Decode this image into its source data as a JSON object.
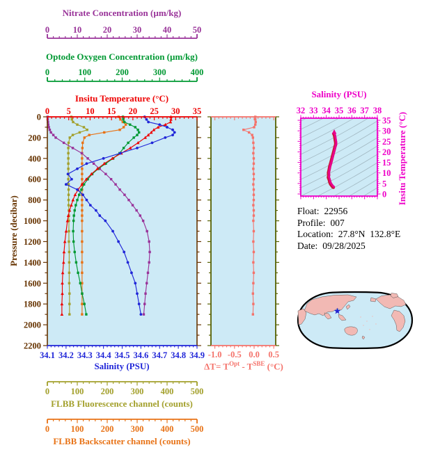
{
  "figure": {
    "background": "#ffffff",
    "plot_background": "#cdeaf6"
  },
  "info": {
    "lines": [
      {
        "label": "Float:",
        "value": "22956"
      },
      {
        "label": "Profile:",
        "value": "007"
      },
      {
        "label": "Location:",
        "value": "27.8°N  132.8°E"
      },
      {
        "label": "Date:",
        "value": "09/28/2025"
      }
    ]
  },
  "map": {
    "ocean_color": "#cdeaf6",
    "land_color": "#f2b9b4",
    "outline_color": "#000000",
    "marker": {
      "type": "star",
      "color": "#2020d0"
    }
  },
  "chart_data": [
    {
      "type": "line",
      "name": "profile-panel",
      "layout": {
        "orientation": "vertical-profile",
        "grid": false,
        "legend": "none"
      },
      "pressure_levels": [
        0,
        25,
        50,
        75,
        100,
        125,
        150,
        175,
        200,
        250,
        300,
        350,
        400,
        450,
        500,
        550,
        600,
        650,
        700,
        750,
        800,
        850,
        900,
        950,
        1000,
        1100,
        1200,
        1300,
        1400,
        1500,
        1600,
        1700,
        1800,
        1900
      ],
      "y_axis": {
        "title": "Pressure (decibar)",
        "range": [
          0,
          2200
        ],
        "ticks": [
          0,
          200,
          400,
          600,
          800,
          1000,
          1200,
          1400,
          1600,
          1800,
          2000,
          2200
        ],
        "minor_step": 100,
        "color": "#663300"
      },
      "series": [
        {
          "name": "fluorescence",
          "marker": "square",
          "color": "#a3a02c",
          "axis": {
            "title": "FLBB Fluorescence channel (counts)",
            "range": [
              0,
              500
            ],
            "ticks": [
              0,
              100,
              200,
              300,
              400,
              500
            ],
            "minor_step": 20,
            "decimals": 0
          },
          "values": [
            80,
            82,
            86,
            100,
            122,
            133,
            108,
            85,
            75,
            71,
            70,
            70,
            70,
            70,
            70,
            70,
            70,
            71,
            71,
            71,
            71,
            71,
            72,
            72,
            72,
            72,
            72,
            73,
            73,
            73,
            73,
            74,
            74,
            74
          ]
        },
        {
          "name": "backscatter",
          "marker": "square",
          "color": "#e87317",
          "axis": {
            "title": "FLBB Backscatter channel (counts)",
            "range": [
              0,
              500
            ],
            "ticks": [
              0,
              100,
              200,
              300,
              400,
              500
            ],
            "minor_step": 20,
            "decimals": 0
          },
          "values": [
            238,
            244,
            252,
            262,
            255,
            242,
            190,
            140,
            124,
            118,
            117,
            116,
            116,
            116,
            116,
            116,
            116,
            116,
            116,
            116,
            116,
            116,
            116,
            116,
            116,
            116,
            116,
            116,
            116,
            116,
            116,
            116,
            116,
            116
          ]
        },
        {
          "name": "nitrate",
          "marker": "square",
          "color": "#993399",
          "axis": {
            "title": "Nitrate Concentration (µm/kg)",
            "range": [
              0,
              50
            ],
            "ticks": [
              0,
              10,
              20,
              30,
              40,
              50
            ],
            "minor_step": 2,
            "decimals": 0
          },
          "values": [
            0.1,
            0.1,
            0.2,
            0.3,
            0.5,
            0.8,
            1.2,
            2.0,
            2.8,
            5.5,
            8.5,
            11.5,
            13.5,
            15.5,
            17.5,
            19.5,
            21.3,
            22.8,
            24.2,
            25.8,
            27.2,
            28.5,
            29.8,
            31.0,
            32.0,
            33.3,
            34.0,
            34.2,
            34.0,
            33.6,
            33.2,
            32.8,
            32.5,
            32.2
          ]
        },
        {
          "name": "oxygen",
          "marker": "square",
          "color": "#009933",
          "axis": {
            "title": "Optode Oxygen Concentration (µm/kg)",
            "range": [
              0,
              400
            ],
            "ticks": [
              0,
              100,
              200,
              300,
              400
            ],
            "minor_step": 20,
            "decimals": 0
          },
          "values": [
            202,
            203,
            206,
            221,
            235,
            242,
            245,
            240,
            231,
            216,
            204,
            193,
            176,
            156,
            136,
            120,
            108,
            98,
            91,
            85,
            80,
            76,
            73,
            71,
            70,
            69,
            70,
            73,
            77,
            82,
            88,
            93,
            99,
            104
          ]
        },
        {
          "name": "temperature",
          "marker": "triangle",
          "color": "#ee0000",
          "axis": {
            "title": "Insitu Temperature (°C)",
            "range": [
              0,
              35
            ],
            "ticks": [
              0,
              5,
              10,
              15,
              20,
              25,
              30,
              35
            ],
            "minor_step": 1,
            "decimals": 0
          },
          "values": [
            28.9,
            28.9,
            28.8,
            27.6,
            25.9,
            24.9,
            24.3,
            23.6,
            22.9,
            21.2,
            19.4,
            17.3,
            15.2,
            13.3,
            11.7,
            10.3,
            9.1,
            8.1,
            7.2,
            6.5,
            6.0,
            5.6,
            5.2,
            4.9,
            4.7,
            4.4,
            4.1,
            3.9,
            3.8,
            3.6,
            3.5,
            3.5,
            3.4,
            3.4
          ]
        },
        {
          "name": "salinity",
          "marker": "circle",
          "color": "#2026d8",
          "axis": {
            "title": "Salinity (PSU)",
            "range": [
              34.1,
              34.9
            ],
            "ticks": [
              34.1,
              34.2,
              34.3,
              34.4,
              34.5,
              34.6,
              34.7,
              34.8,
              34.9
            ],
            "minor_step": 0.02,
            "decimals": 1
          },
          "values": [
            34.62,
            34.63,
            34.64,
            34.7,
            34.74,
            34.77,
            34.78,
            34.77,
            34.73,
            34.66,
            34.58,
            34.49,
            34.4,
            34.31,
            34.26,
            34.21,
            34.23,
            34.2,
            34.26,
            34.29,
            34.31,
            34.33,
            34.36,
            34.38,
            34.41,
            34.45,
            34.48,
            34.51,
            34.53,
            34.55,
            34.57,
            34.58,
            34.59,
            34.6
          ]
        }
      ]
    },
    {
      "type": "line",
      "name": "delta-t-panel",
      "layout": {
        "orientation": "vertical-profile",
        "grid": false
      },
      "x_axis": {
        "title_parts": {
          "pre": "ΔT= T",
          "sup1": "Opt",
          "mid": " - T",
          "sup2": "SBE",
          "post": " (°C)"
        },
        "range": [
          -1.1,
          0.55
        ],
        "ticks": [
          -1.0,
          -0.5,
          0.0,
          0.5
        ],
        "minor_step": 0.1,
        "decimals": 1,
        "color": "#f4736b"
      },
      "side_axis_color": "#556000",
      "marker": "square",
      "values": [
        0.03,
        0.03,
        0.04,
        0.03,
        0.0,
        -0.27,
        -0.13,
        -0.05,
        -0.03,
        -0.02,
        -0.01,
        -0.02,
        -0.01,
        -0.01,
        -0.02,
        -0.01,
        -0.01,
        -0.02,
        -0.01,
        -0.01,
        -0.01,
        -0.02,
        -0.01,
        -0.01,
        -0.02,
        -0.01,
        -0.02,
        -0.01,
        -0.02,
        -0.01,
        -0.02,
        -0.03,
        -0.02,
        -0.03
      ]
    },
    {
      "type": "scatter",
      "name": "ts-diagram",
      "layout": {
        "background_contours": "isopycnals",
        "contour_color": "#a2b8c2"
      },
      "x_axis": {
        "title": "Salinity (PSU)",
        "range": [
          32,
          38
        ],
        "ticks": [
          32,
          33,
          34,
          35,
          36,
          37,
          38
        ],
        "minor_step": 0.2,
        "decimals": 0
      },
      "y_axis": {
        "title": "Insitu Temperature (°C)",
        "range": [
          0,
          35
        ],
        "ticks": [
          35,
          30,
          25,
          20,
          15,
          10,
          5,
          0
        ],
        "minor_step": 1,
        "decimals": 0
      },
      "axis_color": "#ee00c8",
      "curve_color": "#e8008c",
      "curve_shadow_color": "#c81432",
      "points_source": "salinity series vs temperature series of profile-panel"
    }
  ]
}
